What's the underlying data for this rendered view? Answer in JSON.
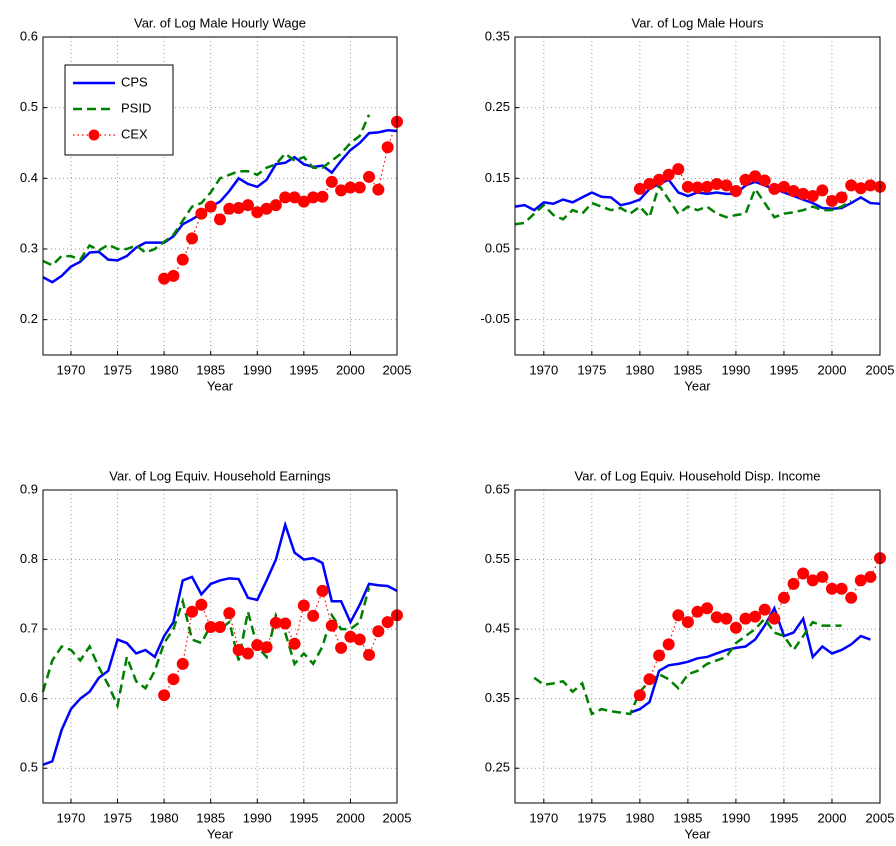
{
  "chart_data": [
    {
      "type": "line",
      "title": "Var. of Log Male Hourly Wage",
      "xlabel": "Year",
      "legend": "upper left",
      "grid": true,
      "x": [
        1967,
        1968,
        1969,
        1970,
        1971,
        1972,
        1973,
        1974,
        1975,
        1976,
        1977,
        1978,
        1979,
        1980,
        1981,
        1982,
        1983,
        1984,
        1985,
        1986,
        1987,
        1988,
        1989,
        1990,
        1991,
        1992,
        1993,
        1994,
        1995,
        1996,
        1997,
        1998,
        1999,
        2000,
        2001,
        2002,
        2003,
        2004,
        2005
      ],
      "xlim": [
        1967,
        2005
      ],
      "xticks": [
        1970,
        1975,
        1980,
        1985,
        1990,
        1995,
        2000,
        2005
      ],
      "ylim": [
        0.15,
        0.6
      ],
      "yticks": [
        0.2,
        0.3,
        0.4,
        0.5,
        0.6
      ],
      "series": [
        {
          "name": "CPS",
          "color": "#0000ff",
          "linestyle": "solid",
          "values": [
            0.26,
            0.253,
            0.262,
            0.275,
            0.282,
            0.295,
            0.296,
            0.285,
            0.284,
            0.29,
            0.302,
            0.309,
            0.309,
            0.309,
            0.318,
            0.335,
            0.342,
            0.35,
            0.36,
            0.367,
            0.382,
            0.4,
            0.392,
            0.388,
            0.398,
            0.42,
            0.422,
            0.43,
            0.42,
            0.416,
            0.418,
            0.408,
            0.425,
            0.44,
            0.45,
            0.464,
            0.465,
            0.468,
            0.467
          ]
        },
        {
          "name": "PSID",
          "color": "#008000",
          "linestyle": "dashed",
          "values": [
            0.283,
            0.277,
            0.29,
            0.29,
            0.285,
            0.305,
            0.298,
            0.306,
            0.3,
            0.3,
            0.305,
            0.295,
            0.3,
            0.31,
            0.32,
            0.34,
            0.36,
            0.365,
            0.38,
            0.4,
            0.405,
            0.41,
            0.41,
            0.405,
            0.415,
            0.42,
            0.435,
            0.425,
            0.43,
            0.415,
            0.415,
            0.425,
            0.435,
            0.45,
            0.46,
            0.49,
            null,
            null,
            null
          ]
        },
        {
          "name": "CEX",
          "color": "#ff0000",
          "linestyle": "dotted",
          "marker": "o",
          "values": [
            null,
            null,
            null,
            null,
            null,
            null,
            null,
            null,
            null,
            null,
            null,
            null,
            null,
            0.258,
            0.262,
            0.285,
            0.315,
            0.35,
            0.36,
            0.342,
            0.357,
            0.358,
            0.362,
            0.352,
            0.357,
            0.362,
            0.373,
            0.373,
            0.367,
            0.373,
            0.374,
            0.395,
            0.383,
            0.387,
            0.387,
            0.402,
            0.384,
            0.444,
            0.48
          ]
        }
      ]
    },
    {
      "type": "line",
      "title": "Var. of Log Male Hours",
      "xlabel": "Year",
      "grid": true,
      "x": [
        1967,
        1968,
        1969,
        1970,
        1971,
        1972,
        1973,
        1974,
        1975,
        1976,
        1977,
        1978,
        1979,
        1980,
        1981,
        1982,
        1983,
        1984,
        1985,
        1986,
        1987,
        1988,
        1989,
        1990,
        1991,
        1992,
        1993,
        1994,
        1995,
        1996,
        1997,
        1998,
        1999,
        2000,
        2001,
        2002,
        2003,
        2004,
        2005
      ],
      "xlim": [
        1967,
        2005
      ],
      "xticks": [
        1970,
        1975,
        1980,
        1985,
        1990,
        1995,
        2000,
        2005
      ],
      "ylim": [
        -0.1,
        0.35
      ],
      "yticks": [
        -0.05,
        0.05,
        0.15,
        0.25,
        0.35
      ],
      "series": [
        {
          "color": "#0000ff",
          "linestyle": "solid",
          "values": [
            0.11,
            0.112,
            0.105,
            0.116,
            0.114,
            0.12,
            0.116,
            0.123,
            0.13,
            0.124,
            0.123,
            0.112,
            0.115,
            0.12,
            0.135,
            0.142,
            0.148,
            0.13,
            0.125,
            0.13,
            0.128,
            0.13,
            0.128,
            0.128,
            0.14,
            0.145,
            0.14,
            0.135,
            0.13,
            0.125,
            0.12,
            0.115,
            0.108,
            0.107,
            0.108,
            0.115,
            0.123,
            0.115,
            0.114
          ]
        },
        {
          "color": "#008000",
          "linestyle": "dashed",
          "values": [
            0.085,
            0.087,
            0.1,
            0.112,
            0.098,
            0.092,
            0.105,
            0.1,
            0.115,
            0.11,
            0.105,
            0.108,
            0.1,
            0.11,
            0.095,
            0.14,
            0.12,
            0.1,
            0.11,
            0.105,
            0.11,
            0.1,
            0.095,
            0.098,
            0.1,
            0.135,
            0.115,
            0.095,
            0.1,
            0.102,
            0.105,
            0.11,
            0.105,
            0.105,
            0.11,
            0.118,
            null,
            null,
            null
          ]
        },
        {
          "color": "#ff0000",
          "linestyle": "dotted",
          "marker": "o",
          "values": [
            null,
            null,
            null,
            null,
            null,
            null,
            null,
            null,
            null,
            null,
            null,
            null,
            null,
            0.135,
            0.142,
            0.148,
            0.155,
            0.163,
            0.138,
            0.137,
            0.138,
            0.142,
            0.14,
            0.132,
            0.148,
            0.153,
            0.147,
            0.135,
            0.138,
            0.132,
            0.128,
            0.125,
            0.133,
            0.118,
            0.123,
            0.14,
            0.136,
            0.14,
            0.138
          ]
        }
      ]
    },
    {
      "type": "line",
      "title": "Var. of Log Equiv. Household Earnings",
      "xlabel": "Year",
      "grid": true,
      "x": [
        1967,
        1968,
        1969,
        1970,
        1971,
        1972,
        1973,
        1974,
        1975,
        1976,
        1977,
        1978,
        1979,
        1980,
        1981,
        1982,
        1983,
        1984,
        1985,
        1986,
        1987,
        1988,
        1989,
        1990,
        1991,
        1992,
        1993,
        1994,
        1995,
        1996,
        1997,
        1998,
        1999,
        2000,
        2001,
        2002,
        2003,
        2004,
        2005
      ],
      "xlim": [
        1967,
        2005
      ],
      "xticks": [
        1970,
        1975,
        1980,
        1985,
        1990,
        1995,
        2000,
        2005
      ],
      "ylim": [
        0.45,
        0.9
      ],
      "yticks": [
        0.5,
        0.6,
        0.7,
        0.8,
        0.9
      ],
      "series": [
        {
          "color": "#0000ff",
          "linestyle": "solid",
          "values": [
            0.505,
            0.51,
            0.555,
            0.585,
            0.6,
            0.61,
            0.63,
            0.64,
            0.685,
            0.68,
            0.665,
            0.67,
            0.66,
            0.69,
            0.71,
            0.77,
            0.775,
            0.75,
            0.765,
            0.77,
            0.773,
            0.772,
            0.745,
            0.742,
            0.77,
            0.8,
            0.85,
            0.81,
            0.8,
            0.802,
            0.795,
            0.74,
            0.74,
            0.71,
            0.735,
            0.765,
            0.763,
            0.762,
            0.755
          ]
        },
        {
          "color": "#008000",
          "linestyle": "dashed",
          "values": [
            0.61,
            0.655,
            0.675,
            0.67,
            0.655,
            0.675,
            0.645,
            0.62,
            0.59,
            0.66,
            0.625,
            0.615,
            0.64,
            0.68,
            0.7,
            0.74,
            0.685,
            0.68,
            0.705,
            0.7,
            0.71,
            0.655,
            0.725,
            0.675,
            0.66,
            0.72,
            0.695,
            0.65,
            0.665,
            0.65,
            0.675,
            0.72,
            0.7,
            0.7,
            0.71,
            0.76,
            null,
            null,
            null
          ]
        },
        {
          "color": "#ff0000",
          "linestyle": "dotted",
          "marker": "o",
          "values": [
            null,
            null,
            null,
            null,
            null,
            null,
            null,
            null,
            null,
            null,
            null,
            null,
            null,
            0.605,
            0.628,
            0.65,
            0.725,
            0.735,
            0.703,
            0.703,
            0.723,
            0.67,
            0.665,
            0.677,
            0.674,
            0.709,
            0.708,
            0.679,
            0.734,
            0.719,
            0.755,
            0.705,
            0.673,
            0.689,
            0.685,
            0.663,
            0.697,
            0.71,
            0.72
          ]
        }
      ]
    },
    {
      "type": "line",
      "title": "Var. of Log Equiv. Household Disp. Income",
      "xlabel": "Year",
      "grid": true,
      "x": [
        1967,
        1968,
        1969,
        1970,
        1971,
        1972,
        1973,
        1974,
        1975,
        1976,
        1977,
        1978,
        1979,
        1980,
        1981,
        1982,
        1983,
        1984,
        1985,
        1986,
        1987,
        1988,
        1989,
        1990,
        1991,
        1992,
        1993,
        1994,
        1995,
        1996,
        1997,
        1998,
        1999,
        2000,
        2001,
        2002,
        2003,
        2004,
        2005
      ],
      "xlim": [
        1967,
        2005
      ],
      "xticks": [
        1970,
        1975,
        1980,
        1985,
        1990,
        1995,
        2000,
        2005
      ],
      "ylim": [
        0.2,
        0.65
      ],
      "yticks": [
        0.25,
        0.35,
        0.45,
        0.55,
        0.65
      ],
      "series": [
        {
          "color": "#0000ff",
          "linestyle": "solid",
          "values": [
            null,
            null,
            null,
            null,
            null,
            null,
            null,
            null,
            null,
            null,
            null,
            null,
            0.33,
            0.335,
            0.345,
            0.39,
            0.398,
            0.4,
            0.403,
            0.408,
            0.41,
            0.415,
            0.42,
            0.423,
            0.425,
            0.435,
            0.455,
            0.48,
            0.44,
            0.445,
            0.465,
            0.41,
            0.425,
            0.415,
            0.42,
            0.428,
            0.44,
            0.435,
            null
          ]
        },
        {
          "color": "#008000",
          "linestyle": "dashed",
          "values": [
            null,
            null,
            0.38,
            0.37,
            0.372,
            0.375,
            0.36,
            0.372,
            0.328,
            0.335,
            0.332,
            0.33,
            0.328,
            0.36,
            0.375,
            0.385,
            0.378,
            0.365,
            0.385,
            0.39,
            0.4,
            0.405,
            0.41,
            0.43,
            0.44,
            0.45,
            0.465,
            0.445,
            0.44,
            0.42,
            0.44,
            0.46,
            0.455,
            0.455,
            0.455,
            null,
            null,
            null,
            null
          ]
        },
        {
          "color": "#ff0000",
          "linestyle": "dotted",
          "marker": "o",
          "values": [
            null,
            null,
            null,
            null,
            null,
            null,
            null,
            null,
            null,
            null,
            null,
            null,
            null,
            0.355,
            0.378,
            0.412,
            0.428,
            0.47,
            0.46,
            0.475,
            0.48,
            0.467,
            0.465,
            0.452,
            0.465,
            0.468,
            0.478,
            0.465,
            0.495,
            0.515,
            0.53,
            0.52,
            0.525,
            0.508,
            0.508,
            0.495,
            0.52,
            0.525,
            0.552
          ]
        }
      ]
    }
  ]
}
